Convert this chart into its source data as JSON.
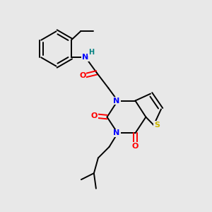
{
  "bg_color": "#e8e8e8",
  "atom_colors": {
    "C": "#000000",
    "N": "#0000ff",
    "O": "#ff0000",
    "S": "#ccb800",
    "H": "#008080"
  },
  "bond_color": "#000000"
}
